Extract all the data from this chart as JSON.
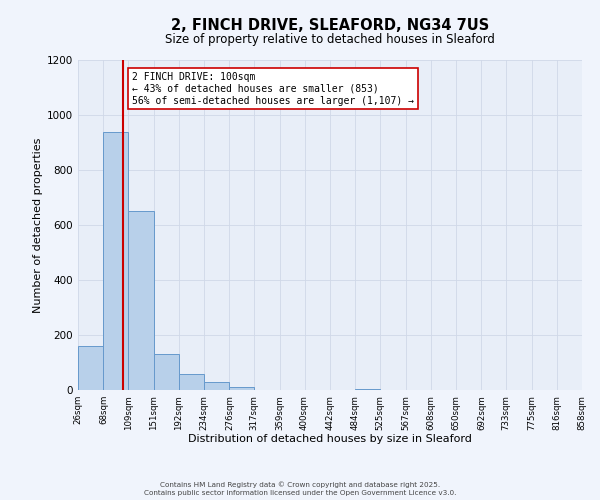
{
  "title": "2, FINCH DRIVE, SLEAFORD, NG34 7US",
  "subtitle": "Size of property relative to detached houses in Sleaford",
  "xlabel": "Distribution of detached houses by size in Sleaford",
  "ylabel": "Number of detached properties",
  "bar_color": "#b8d0ea",
  "bar_edge_color": "#6699cc",
  "background_color": "#e8eef8",
  "fig_background_color": "#f0f4fc",
  "grid_color": "#d0d8e8",
  "bin_edges": [
    26,
    68,
    109,
    151,
    192,
    234,
    276,
    317,
    359,
    400,
    442,
    484,
    525,
    567,
    608,
    650,
    692,
    733,
    775,
    816,
    858
  ],
  "bin_labels": [
    "26sqm",
    "68sqm",
    "109sqm",
    "151sqm",
    "192sqm",
    "234sqm",
    "276sqm",
    "317sqm",
    "359sqm",
    "400sqm",
    "442sqm",
    "484sqm",
    "525sqm",
    "567sqm",
    "608sqm",
    "650sqm",
    "692sqm",
    "733sqm",
    "775sqm",
    "816sqm",
    "858sqm"
  ],
  "bar_heights": [
    160,
    940,
    650,
    130,
    57,
    28,
    12,
    0,
    0,
    0,
    0,
    5,
    0,
    0,
    0,
    0,
    0,
    0,
    0,
    0
  ],
  "property_size": 100,
  "property_line_color": "#cc0000",
  "annotation_line1": "2 FINCH DRIVE: 100sqm",
  "annotation_line2": "← 43% of detached houses are smaller (853)",
  "annotation_line3": "56% of semi-detached houses are larger (1,107) →",
  "annotation_box_color": "#ffffff",
  "annotation_box_edge_color": "#cc0000",
  "ylim": [
    0,
    1200
  ],
  "yticks": [
    0,
    200,
    400,
    600,
    800,
    1000,
    1200
  ],
  "footer_line1": "Contains HM Land Registry data © Crown copyright and database right 2025.",
  "footer_line2": "Contains public sector information licensed under the Open Government Licence v3.0."
}
